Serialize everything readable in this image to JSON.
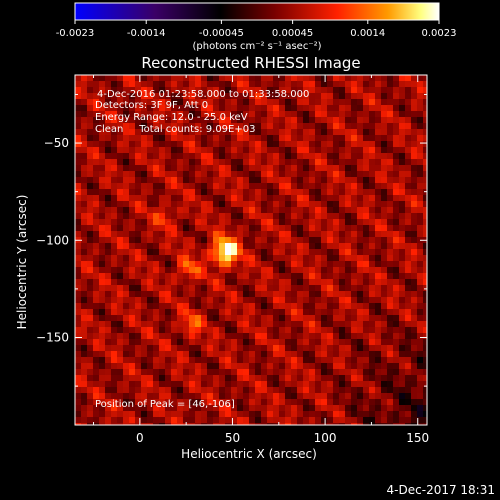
{
  "colorbar": {
    "ticks": [
      -0.0023,
      -0.0014,
      -0.00045,
      0.00045,
      0.0014,
      0.0023
    ],
    "tick_labels": [
      "-0.0023",
      "-0.0014",
      "-0.00045",
      "0.00045",
      "0.0014",
      "0.0023"
    ],
    "range": [
      -0.0023,
      0.0023
    ],
    "unit_label": "(photons cm⁻² s⁻¹ asec⁻²)",
    "colors": [
      "#0000ff",
      "#3a0066",
      "#000000",
      "#7a0000",
      "#ff2000",
      "#ff9a00",
      "#ffff80",
      "#ffffff"
    ]
  },
  "chart_data": {
    "type": "heatmap",
    "title": "Reconstructed RHESSI Image",
    "xlabel": "Heliocentric X (arcsec)",
    "ylabel": "Heliocentric Y (arcsec)",
    "xlim": [
      -35,
      155
    ],
    "ylim": [
      -195,
      -15
    ],
    "x_ticks": [
      0,
      50,
      100,
      150
    ],
    "y_ticks": [
      -50,
      -100,
      -150
    ],
    "tick_labels_x": [
      "0",
      "50",
      "100",
      "150"
    ],
    "tick_labels_y": [
      "−50",
      "−100",
      "−150"
    ],
    "peak": [
      46,
      -106
    ],
    "secondary_sources": [
      {
        "x": 26,
        "y": -115,
        "value": 0.0012
      },
      {
        "x": 28,
        "y": -143,
        "value": 0.0011
      },
      {
        "x": 14,
        "y": -88,
        "value": 0.0009
      }
    ],
    "peak_value": 0.0023,
    "annotations": [
      "4-Dec-2016 01:23:58.000 to 01:33:58.000",
      "Detectors: 3F 9F, Att 0",
      "Energy Range: 12.0 - 25.0 keV",
      "Clean     Total counts: 9.09E+03"
    ],
    "peak_label": "Position of Peak = [46,-106]"
  },
  "footer": {
    "timestamp": "4-Dec-2017 18:31"
  }
}
